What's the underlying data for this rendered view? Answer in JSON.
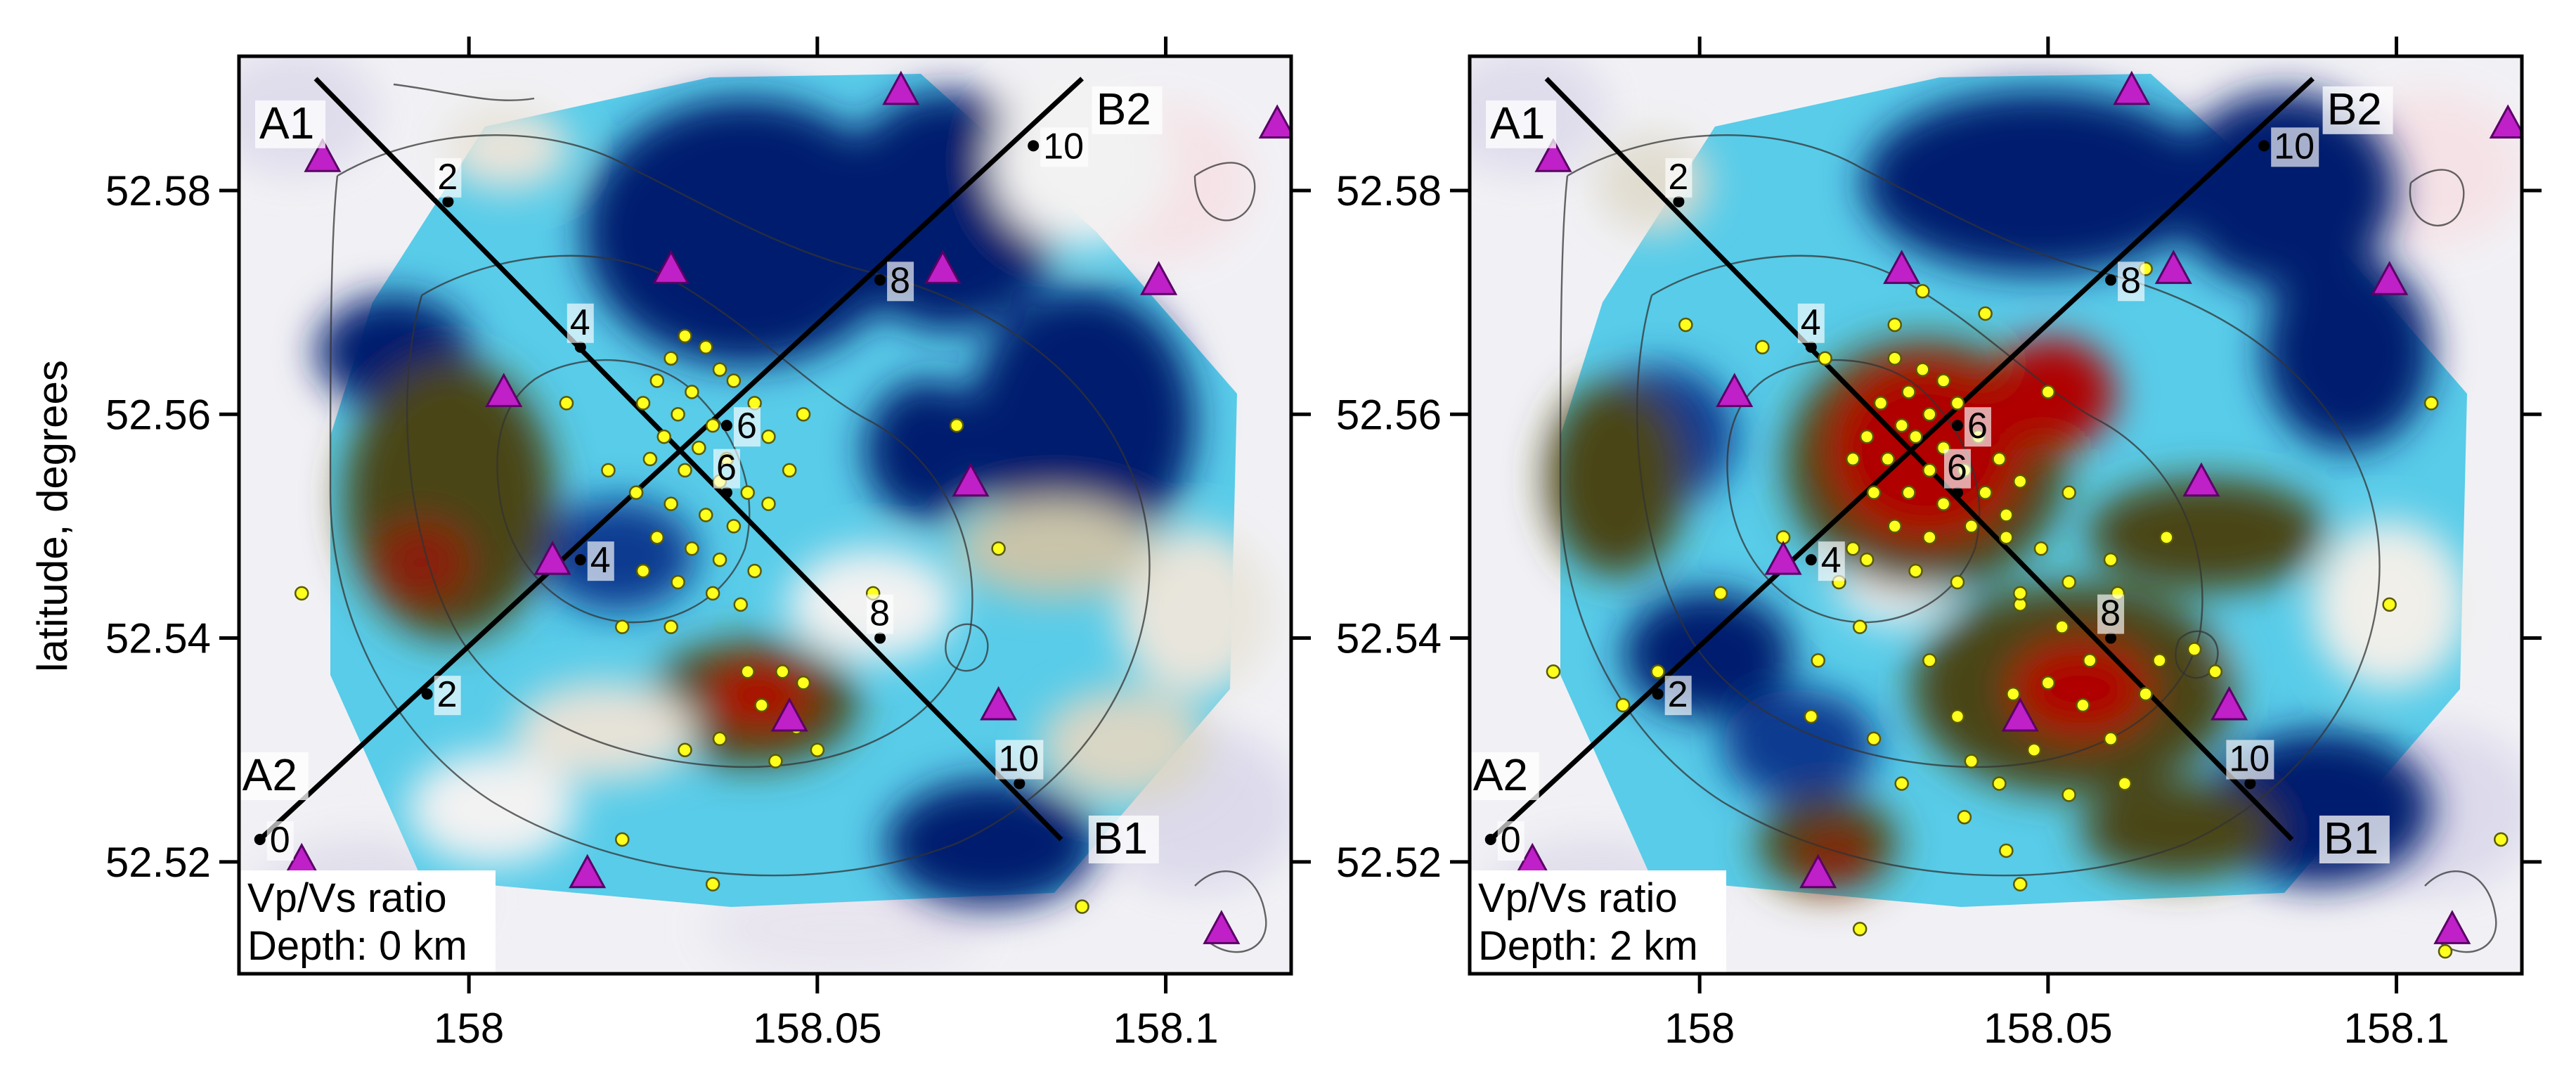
{
  "y_axis_title": "latitude, degrees",
  "x_ticks": [
    158,
    158.05,
    158.1
  ],
  "x_tick_labels": [
    "158",
    "158.05",
    "158.1"
  ],
  "y_ticks": [
    52.52,
    52.54,
    52.56,
    52.58
  ],
  "y_tick_labels": [
    "52.52",
    "52.54",
    "52.56",
    "52.58"
  ],
  "x_range": [
    157.967,
    158.118
  ],
  "y_range": [
    52.51,
    52.592
  ],
  "colors": {
    "low_ratio_deep": "#001a6e",
    "low_ratio": "#00b4e6",
    "neutral": "#f2f2f2",
    "high_ratio": "#4a4418",
    "high_ratio_peak": "#b00000",
    "station": "#c020c8",
    "earthquake": "#ffff1e"
  },
  "profiles": [
    {
      "start_label": "A1",
      "end_label": "B1",
      "start": [
        157.978,
        52.59
      ],
      "end": [
        158.085,
        52.522
      ]
    },
    {
      "start_label": "A2",
      "end_label": "B2",
      "start": [
        157.97,
        52.522
      ],
      "end": [
        158.088,
        52.59
      ]
    }
  ],
  "panels": [
    {
      "caption_line1": "Vp/Vs ratio",
      "caption_line2": "Depth: 0 km",
      "km_marks": [
        {
          "label": "2",
          "lon": 157.997,
          "lat": 52.579,
          "profile": "A1-B1"
        },
        {
          "label": "4",
          "lon": 158.016,
          "lat": 52.566,
          "profile": "A1-B1"
        },
        {
          "label": "6",
          "lon": 158.037,
          "lat": 52.553,
          "profile": "A1-B1"
        },
        {
          "label": "8",
          "lon": 158.059,
          "lat": 52.54,
          "profile": "A1-B1"
        },
        {
          "label": "10",
          "lon": 158.079,
          "lat": 52.527,
          "profile": "A1-B1"
        },
        {
          "label": "0",
          "lon": 157.97,
          "lat": 52.522,
          "profile": "A2-B2"
        },
        {
          "label": "2",
          "lon": 157.994,
          "lat": 52.535,
          "profile": "A2-B2"
        },
        {
          "label": "4",
          "lon": 158.016,
          "lat": 52.547,
          "profile": "A2-B2"
        },
        {
          "label": "6",
          "lon": 158.037,
          "lat": 52.559,
          "profile": "A2-B2"
        },
        {
          "label": "8",
          "lon": 158.059,
          "lat": 52.572,
          "profile": "A2-B2"
        },
        {
          "label": "10",
          "lon": 158.081,
          "lat": 52.584,
          "profile": "A2-B2"
        }
      ],
      "stations": [
        [
          157.979,
          52.583
        ],
        [
          158.062,
          52.589
        ],
        [
          158.116,
          52.586
        ],
        [
          158.029,
          52.573
        ],
        [
          158.068,
          52.573
        ],
        [
          158.099,
          52.572
        ],
        [
          158.005,
          52.562
        ],
        [
          158.072,
          52.554
        ],
        [
          158.012,
          52.547
        ],
        [
          158.046,
          52.533
        ],
        [
          158.076,
          52.534
        ],
        [
          157.976,
          52.52
        ],
        [
          158.017,
          52.519
        ],
        [
          158.108,
          52.514
        ]
      ],
      "earthquakes": [
        [
          158.031,
          52.567
        ],
        [
          158.034,
          52.566
        ],
        [
          158.029,
          52.565
        ],
        [
          158.036,
          52.564
        ],
        [
          158.027,
          52.563
        ],
        [
          158.032,
          52.562
        ],
        [
          158.038,
          52.563
        ],
        [
          158.025,
          52.561
        ],
        [
          158.03,
          52.56
        ],
        [
          158.035,
          52.559
        ],
        [
          158.041,
          52.561
        ],
        [
          158.028,
          52.558
        ],
        [
          158.033,
          52.557
        ],
        [
          158.037,
          52.556
        ],
        [
          158.043,
          52.558
        ],
        [
          158.026,
          52.556
        ],
        [
          158.031,
          52.555
        ],
        [
          158.036,
          52.554
        ],
        [
          158.04,
          52.553
        ],
        [
          158.024,
          52.553
        ],
        [
          158.029,
          52.552
        ],
        [
          158.034,
          52.551
        ],
        [
          158.038,
          52.55
        ],
        [
          158.043,
          52.552
        ],
        [
          158.027,
          52.549
        ],
        [
          158.032,
          52.548
        ],
        [
          158.036,
          52.547
        ],
        [
          158.041,
          52.546
        ],
        [
          158.03,
          52.545
        ],
        [
          158.035,
          52.544
        ],
        [
          158.025,
          52.546
        ],
        [
          158.039,
          52.543
        ],
        [
          158.046,
          52.555
        ],
        [
          158.048,
          52.56
        ],
        [
          158.02,
          52.555
        ],
        [
          158.014,
          52.561
        ],
        [
          158.022,
          52.541
        ],
        [
          158.029,
          52.541
        ],
        [
          158.04,
          52.537
        ],
        [
          158.045,
          52.537
        ],
        [
          158.048,
          52.536
        ],
        [
          158.042,
          52.534
        ],
        [
          158.047,
          52.532
        ],
        [
          158.05,
          52.53
        ],
        [
          158.036,
          52.531
        ],
        [
          158.044,
          52.529
        ],
        [
          158.031,
          52.53
        ],
        [
          158.058,
          52.544
        ],
        [
          158.07,
          52.559
        ],
        [
          158.076,
          52.548
        ],
        [
          157.976,
          52.544
        ],
        [
          158.022,
          52.522
        ],
        [
          158.035,
          52.518
        ],
        [
          158.088,
          52.516
        ]
      ]
    },
    {
      "caption_line1": "Vp/Vs ratio",
      "caption_line2": "Depth: 2 km",
      "km_marks": [
        {
          "label": "2",
          "lon": 157.997,
          "lat": 52.579,
          "profile": "A1-B1"
        },
        {
          "label": "4",
          "lon": 158.016,
          "lat": 52.566,
          "profile": "A1-B1"
        },
        {
          "label": "6",
          "lon": 158.037,
          "lat": 52.553,
          "profile": "A1-B1"
        },
        {
          "label": "8",
          "lon": 158.059,
          "lat": 52.54,
          "profile": "A1-B1"
        },
        {
          "label": "10",
          "lon": 158.079,
          "lat": 52.527,
          "profile": "A1-B1"
        },
        {
          "label": "0",
          "lon": 157.97,
          "lat": 52.522,
          "profile": "A2-B2"
        },
        {
          "label": "2",
          "lon": 157.994,
          "lat": 52.535,
          "profile": "A2-B2"
        },
        {
          "label": "4",
          "lon": 158.016,
          "lat": 52.547,
          "profile": "A2-B2"
        },
        {
          "label": "6",
          "lon": 158.037,
          "lat": 52.559,
          "profile": "A2-B2"
        },
        {
          "label": "8",
          "lon": 158.059,
          "lat": 52.572,
          "profile": "A2-B2"
        },
        {
          "label": "10",
          "lon": 158.081,
          "lat": 52.584,
          "profile": "A2-B2"
        }
      ],
      "stations": [
        [
          157.979,
          52.583
        ],
        [
          158.062,
          52.589
        ],
        [
          158.116,
          52.586
        ],
        [
          158.029,
          52.573
        ],
        [
          158.068,
          52.573
        ],
        [
          158.099,
          52.572
        ],
        [
          158.005,
          52.562
        ],
        [
          158.072,
          52.554
        ],
        [
          158.012,
          52.547
        ],
        [
          158.046,
          52.533
        ],
        [
          158.076,
          52.534
        ],
        [
          157.976,
          52.52
        ],
        [
          158.017,
          52.519
        ],
        [
          158.108,
          52.514
        ]
      ],
      "earthquakes": [
        [
          158.028,
          52.565
        ],
        [
          158.032,
          52.564
        ],
        [
          158.035,
          52.563
        ],
        [
          158.03,
          52.562
        ],
        [
          158.026,
          52.561
        ],
        [
          158.033,
          52.56
        ],
        [
          158.037,
          52.561
        ],
        [
          158.029,
          52.559
        ],
        [
          158.024,
          52.558
        ],
        [
          158.031,
          52.558
        ],
        [
          158.035,
          52.557
        ],
        [
          158.04,
          52.558
        ],
        [
          158.022,
          52.556
        ],
        [
          158.027,
          52.556
        ],
        [
          158.033,
          52.555
        ],
        [
          158.038,
          52.555
        ],
        [
          158.043,
          52.556
        ],
        [
          158.025,
          52.553
        ],
        [
          158.03,
          52.553
        ],
        [
          158.035,
          52.552
        ],
        [
          158.041,
          52.553
        ],
        [
          158.046,
          52.554
        ],
        [
          158.028,
          52.55
        ],
        [
          158.033,
          52.549
        ],
        [
          158.039,
          52.55
        ],
        [
          158.044,
          52.549
        ],
        [
          158.022,
          52.548
        ],
        [
          158.031,
          52.546
        ],
        [
          158.037,
          52.545
        ],
        [
          158.05,
          52.562
        ],
        [
          158.041,
          52.569
        ],
        [
          158.053,
          52.553
        ],
        [
          158.064,
          52.573
        ],
        [
          158.049,
          52.548
        ],
        [
          158.053,
          52.545
        ],
        [
          158.046,
          52.543
        ],
        [
          158.052,
          52.541
        ],
        [
          158.056,
          52.538
        ],
        [
          158.05,
          52.536
        ],
        [
          158.045,
          52.535
        ],
        [
          158.055,
          52.534
        ],
        [
          158.059,
          52.531
        ],
        [
          158.048,
          52.53
        ],
        [
          158.043,
          52.527
        ],
        [
          158.053,
          52.526
        ],
        [
          158.061,
          52.527
        ],
        [
          158.064,
          52.535
        ],
        [
          158.066,
          52.538
        ],
        [
          158.071,
          52.539
        ],
        [
          158.074,
          52.537
        ],
        [
          158.06,
          52.544
        ],
        [
          158.067,
          52.549
        ],
        [
          158.032,
          52.571
        ],
        [
          158.028,
          52.568
        ],
        [
          158.018,
          52.565
        ],
        [
          158.009,
          52.566
        ],
        [
          157.998,
          52.568
        ],
        [
          158.012,
          52.549
        ],
        [
          158.02,
          52.545
        ],
        [
          158.024,
          52.547
        ],
        [
          158.023,
          52.541
        ],
        [
          158.017,
          52.538
        ],
        [
          158.016,
          52.533
        ],
        [
          158.025,
          52.531
        ],
        [
          158.033,
          52.538
        ],
        [
          158.037,
          52.533
        ],
        [
          158.039,
          52.529
        ],
        [
          158.029,
          52.527
        ],
        [
          158.038,
          52.524
        ],
        [
          158.044,
          52.521
        ],
        [
          158.046,
          52.518
        ],
        [
          157.994,
          52.537
        ],
        [
          157.979,
          52.537
        ],
        [
          157.989,
          52.534
        ],
        [
          158.003,
          52.544
        ],
        [
          158.099,
          52.543
        ],
        [
          158.105,
          52.561
        ],
        [
          158.115,
          52.522
        ],
        [
          158.107,
          52.512
        ],
        [
          158.023,
          52.514
        ],
        [
          158.046,
          52.544
        ],
        [
          158.059,
          52.547
        ],
        [
          158.044,
          52.551
        ]
      ]
    }
  ]
}
